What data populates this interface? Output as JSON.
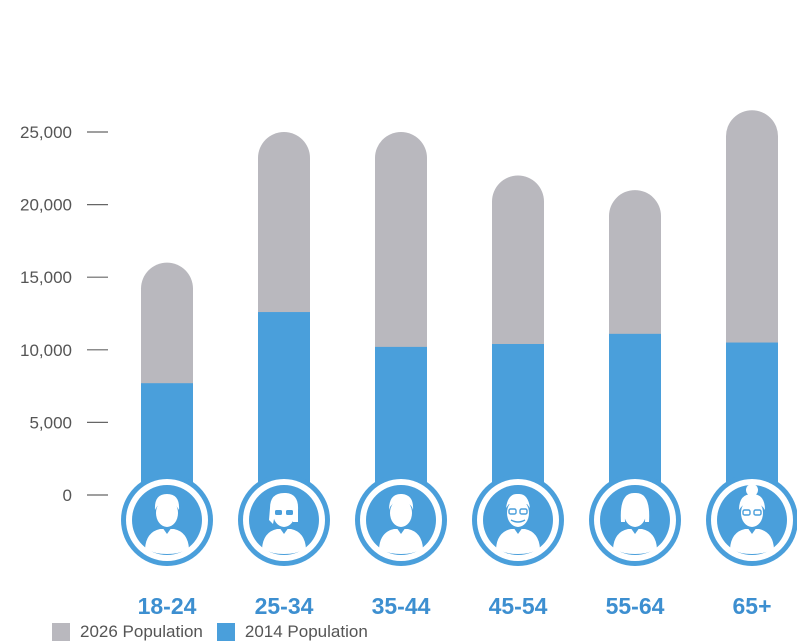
{
  "chart_data": {
    "type": "bar",
    "stacked": false,
    "categories": [
      "18-24",
      "25-34",
      "35-44",
      "45-54",
      "55-64",
      "65+"
    ],
    "series": [
      {
        "name": "2026 Population",
        "color": "#b9b8be",
        "values": [
          16000,
          25000,
          25000,
          22000,
          21000,
          26500
        ]
      },
      {
        "name": "2014 Population",
        "color": "#4a9fdb",
        "values": [
          7700,
          12600,
          10200,
          10400,
          11100,
          10500
        ]
      }
    ],
    "yticks": [
      {
        "value": 0,
        "label": "0"
      },
      {
        "value": 5000,
        "label": "5,000"
      },
      {
        "value": 10000,
        "label": "10,000"
      },
      {
        "value": 15000,
        "label": "15,000"
      },
      {
        "value": 20000,
        "label": "20,000"
      },
      {
        "value": 25000,
        "label": "25,000"
      }
    ],
    "ylim": [
      0,
      27000
    ],
    "grid": false,
    "legend_position": "bottom-left",
    "category_icons": [
      "young-man-icon",
      "young-woman-icon",
      "man-in-suit-icon",
      "older-man-with-glasses-icon",
      "woman-in-blazer-icon",
      "elderly-woman-with-glasses-icon"
    ],
    "label_color": "#3d8fd0"
  }
}
